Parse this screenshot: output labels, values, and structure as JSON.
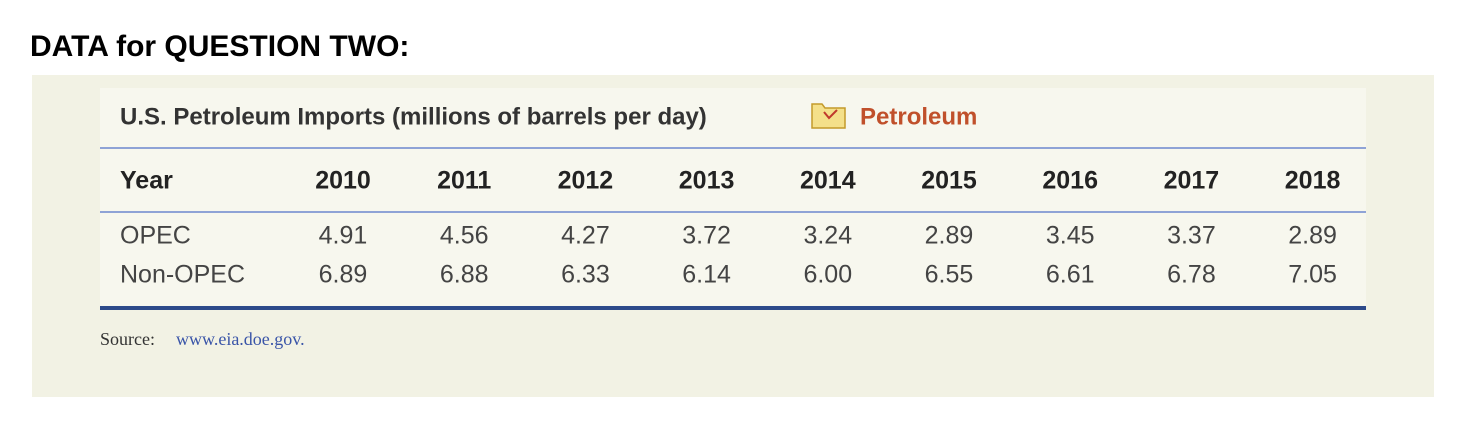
{
  "header": {
    "title": "DATA for QUESTION TWO:"
  },
  "table": {
    "title": "U.S. Petroleum Imports (millions of barrels per day)",
    "tag": "Petroleum",
    "columns": [
      "Year",
      "2010",
      "2011",
      "2012",
      "2013",
      "2014",
      "2015",
      "2016",
      "2017",
      "2018"
    ],
    "rows": [
      [
        "OPEC",
        "4.91",
        "4.56",
        "4.27",
        "3.72",
        "3.24",
        "2.89",
        "3.45",
        "3.37",
        "2.89"
      ],
      [
        "Non-OPEC",
        "6.89",
        "6.88",
        "6.33",
        "6.14",
        "6.00",
        "6.55",
        "6.61",
        "6.78",
        "7.05"
      ]
    ],
    "source_label": "Source:",
    "source_url": "www.eia.doe.gov."
  }
}
